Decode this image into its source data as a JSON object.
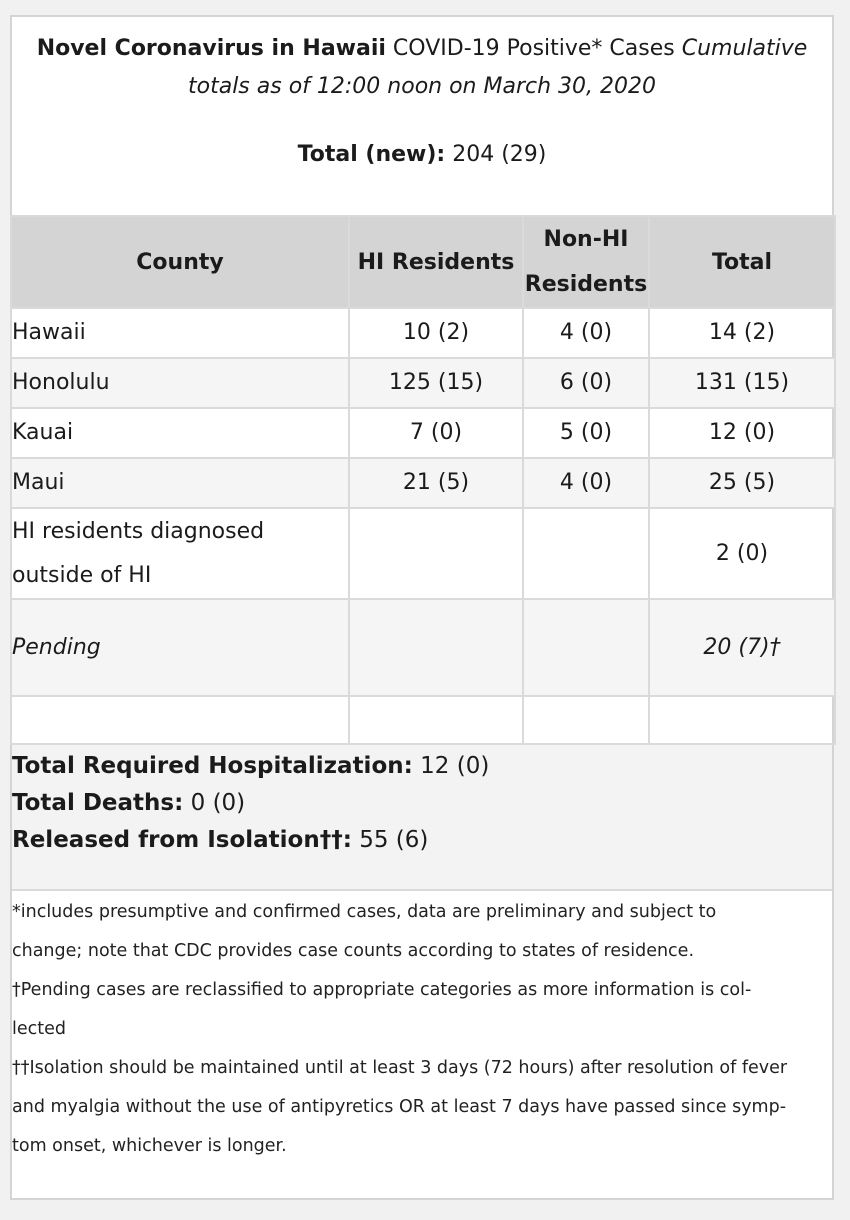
{
  "header": {
    "title_bold": "Novel Coronavirus in Hawaii",
    "title_plain": " COVID-19 Positive* Cases ",
    "title_italic": "Cumulative totals as of 12:00 noon on March 30, 2020",
    "total_label": "Total (new):",
    "total_value": " 204 (29)"
  },
  "table": {
    "headers": {
      "county": "County",
      "hi_residents": "HI Residents",
      "non_hi_line1": "Non-HI",
      "non_hi_line2": "Residents",
      "total": "Total"
    },
    "rows": [
      {
        "county": "Hawaii",
        "hi": "10 (2)",
        "non_hi": "4 (0)",
        "total": "14 (2)"
      },
      {
        "county": "Honolulu",
        "hi": "125 (15)",
        "non_hi": "6 (0)",
        "total": "131 (15)"
      },
      {
        "county": "Kauai",
        "hi": "7 (0)",
        "non_hi": "5 (0)",
        "total": "12 (0)"
      },
      {
        "county": "Maui",
        "hi": "21 (5)",
        "non_hi": "4 (0)",
        "total": "25 (5)"
      }
    ],
    "outside": {
      "label_line1": "HI residents diagnosed",
      "label_line2": "outside of HI",
      "total": "2 (0)"
    },
    "pending": {
      "label": "Pending",
      "total": "20 (7)†"
    }
  },
  "summary": {
    "hospitalization_label": "Total Required Hospitalization:",
    "hospitalization_value": " 12 (0)",
    "deaths_label": "Total Deaths:",
    "deaths_value": " 0 (0)",
    "released_label": "Released from Isolation††:",
    "released_value": " 55 (6)"
  },
  "notes": {
    "line1": "*includes presumptive and confirmed cases, data are preliminary and subject to",
    "line2": "change; note that CDC provides case counts according to states of residence.",
    "line3": "†Pending cases are reclassified to appropriate categories as more information is col-",
    "line4": "lected",
    "line5": "††Isolation should be maintained until at least 3 days (72 hours) after resolution of fever",
    "line6": "and myalgia without the use of antipyretics OR at least 7 days have passed since symp-",
    "line7": "tom onset, whichever is longer."
  }
}
